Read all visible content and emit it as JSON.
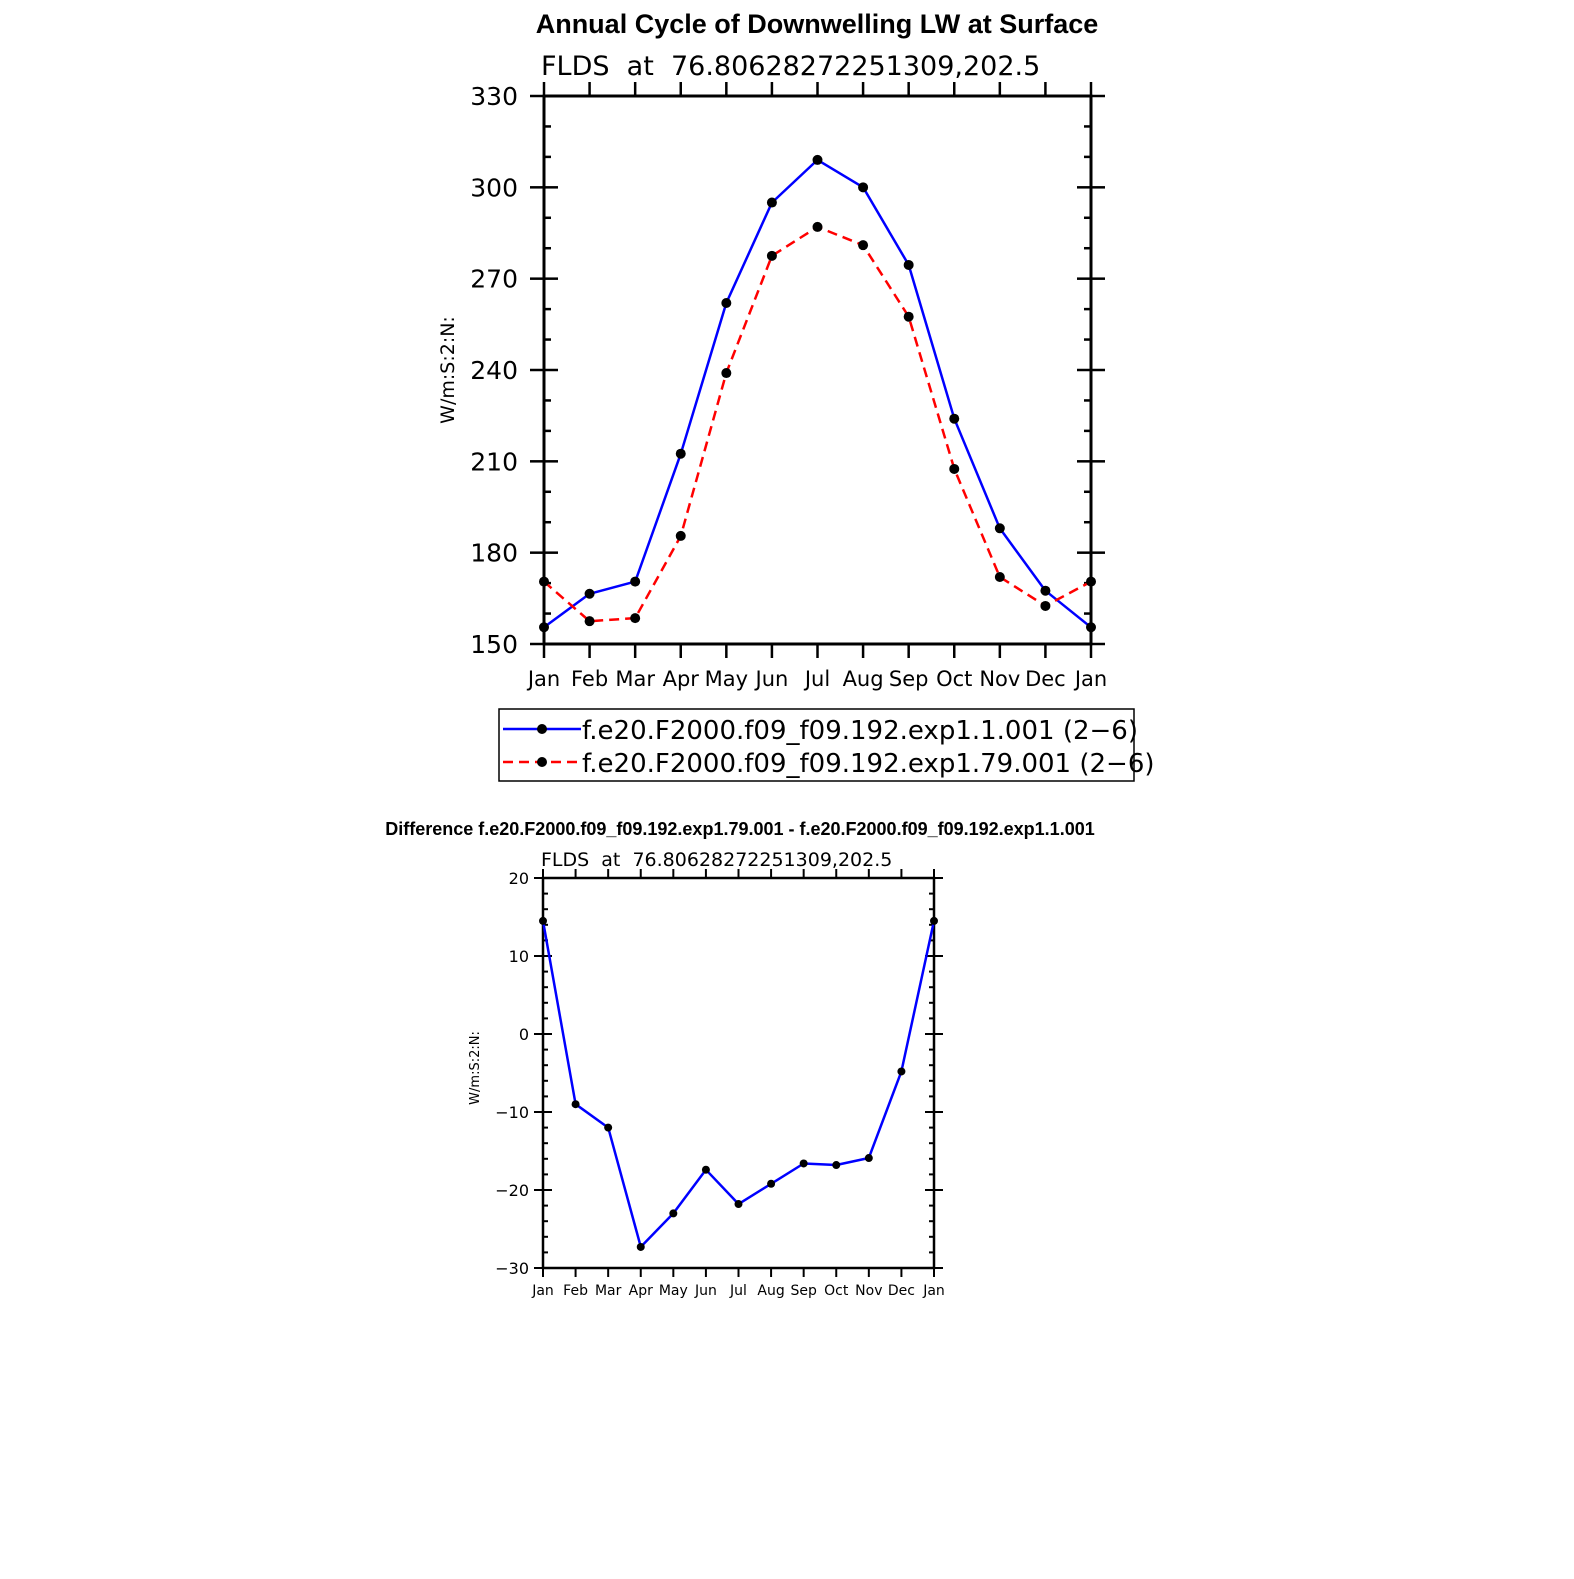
{
  "chart_data": [
    {
      "type": "line",
      "title": "Annual Cycle of Downwelling LW at Surface",
      "subtitle": "FLDS  at  76.80628272251309,202.5",
      "ylabel": "W/m:S:2:N:",
      "xlabel": "",
      "categories": [
        "Jan",
        "Feb",
        "Mar",
        "Apr",
        "May",
        "Jun",
        "Jul",
        "Aug",
        "Sep",
        "Oct",
        "Nov",
        "Dec",
        "Jan"
      ],
      "ylim": [
        150,
        330
      ],
      "yticks": [
        150,
        180,
        210,
        240,
        270,
        300,
        330
      ],
      "legend_position": "bottom",
      "series": [
        {
          "name": "f.e20.F2000.f09_f09.192.exp1.1.001 (2−6)",
          "color": "#0000ff",
          "dash": "solid",
          "values": [
            155.5,
            166.5,
            170.5,
            212.5,
            262,
            295,
            309,
            300,
            274.5,
            224,
            188,
            167.5,
            155.5
          ]
        },
        {
          "name": "f.e20.F2000.f09_f09.192.exp1.79.001 (2−6)",
          "color": "#ff0000",
          "dash": "dashed",
          "values": [
            170.5,
            157.5,
            158.5,
            185.5,
            239,
            277.5,
            287,
            281,
            257.5,
            207.5,
            172,
            162.5,
            170.5
          ]
        }
      ]
    },
    {
      "type": "line",
      "title": "Difference f.e20.F2000.f09_f09.192.exp1.79.001 - f.e20.F2000.f09_f09.192.exp1.1.001",
      "subtitle": "FLDS  at  76.80628272251309,202.5",
      "ylabel": "W/m:S:2:N:",
      "xlabel": "",
      "categories": [
        "Jan",
        "Feb",
        "Mar",
        "Apr",
        "May",
        "Jun",
        "Jul",
        "Aug",
        "Sep",
        "Oct",
        "Nov",
        "Dec",
        "Jan"
      ],
      "ylim": [
        -30,
        20
      ],
      "yticks": [
        -30,
        -20,
        -10,
        0,
        10,
        20
      ],
      "series": [
        {
          "color": "#0000ff",
          "dash": "solid",
          "values": [
            14.5,
            -9,
            -12,
            -27.3,
            -23,
            -17.4,
            -21.8,
            -19.2,
            -16.6,
            -16.8,
            -15.9,
            -4.8,
            14.5
          ]
        }
      ]
    }
  ]
}
